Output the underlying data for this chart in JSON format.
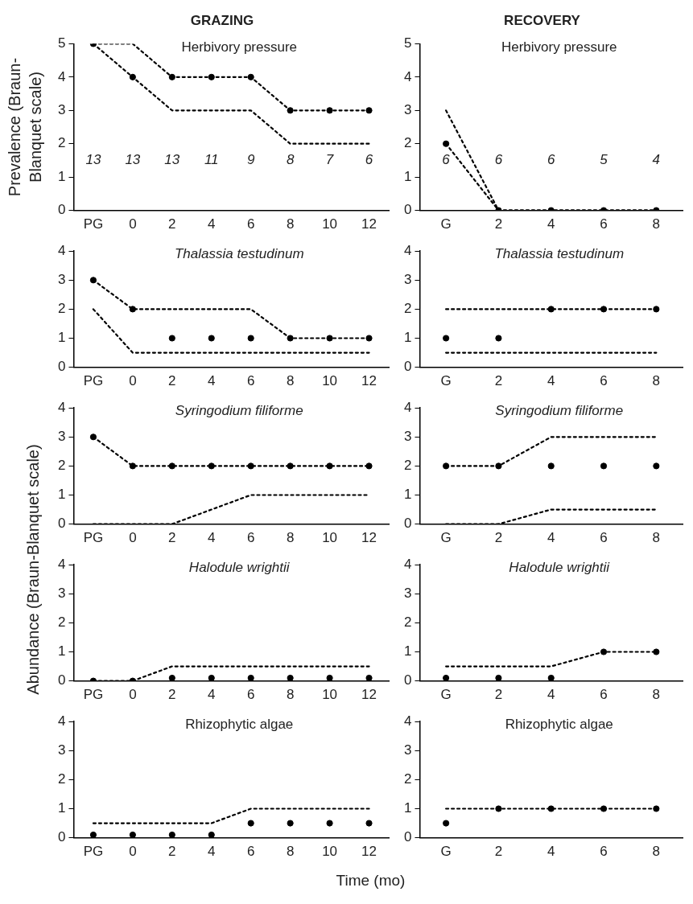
{
  "chart_data": [
    {
      "type": "line",
      "title": "GRAZING",
      "subtitle": "Herbivory pressure",
      "ylabel": "Prevalence (Braun-Blanquet scale)",
      "categories": [
        "PG",
        "0",
        "2",
        "4",
        "6",
        "8",
        "10",
        "12"
      ],
      "ylim": [
        0,
        5
      ],
      "yticks": [
        0,
        1,
        2,
        3,
        4,
        5
      ],
      "grid": false,
      "series": [
        {
          "line_style": "dashed",
          "color": "#000000",
          "values": [
            5,
            5,
            4,
            4,
            4,
            3,
            3,
            3
          ]
        },
        {
          "line_style": "dashed",
          "color": "#000000",
          "values": [
            5,
            4,
            3,
            3,
            3,
            2,
            2,
            2
          ]
        },
        {
          "type": "scatter",
          "marker": "circle",
          "color": "#000000",
          "values": [
            5,
            4,
            4,
            4,
            4,
            3,
            3,
            3
          ]
        }
      ],
      "annotations": [
        "13",
        "13",
        "13",
        "11",
        "9",
        "8",
        "7",
        "6"
      ]
    },
    {
      "type": "line",
      "title": "RECOVERY",
      "subtitle": "Herbivory pressure",
      "categories": [
        "G",
        "2",
        "4",
        "6",
        "8"
      ],
      "ylim": [
        0,
        5
      ],
      "yticks": [
        0,
        1,
        2,
        3,
        4,
        5
      ],
      "grid": false,
      "series": [
        {
          "line_style": "dashed",
          "color": "#000000",
          "values": [
            3,
            0,
            0,
            0,
            0
          ]
        },
        {
          "line_style": "dashed",
          "color": "#000000",
          "values": [
            2,
            0,
            0,
            0,
            0
          ]
        },
        {
          "type": "scatter",
          "marker": "circle",
          "color": "#000000",
          "values": [
            2,
            0,
            0,
            0,
            0
          ]
        }
      ],
      "annotations": [
        "6",
        "6",
        "6",
        "5",
        "4"
      ]
    },
    {
      "type": "line",
      "subtitle": "Thalassia testudinum",
      "categories": [
        "PG",
        "0",
        "2",
        "4",
        "6",
        "8",
        "10",
        "12"
      ],
      "ylim": [
        0,
        4
      ],
      "yticks": [
        0,
        1,
        2,
        3,
        4
      ],
      "grid": false,
      "series": [
        {
          "line_style": "dashed",
          "color": "#000000",
          "values": [
            3,
            2,
            2,
            2,
            2,
            1,
            1,
            1
          ]
        },
        {
          "line_style": "dashed",
          "color": "#000000",
          "values": [
            2,
            0.5,
            0.5,
            0.5,
            0.5,
            0.5,
            0.5,
            0.5
          ]
        },
        {
          "type": "scatter",
          "marker": "circle",
          "color": "#000000",
          "values": [
            3,
            2,
            1,
            1,
            1,
            1,
            1,
            1
          ]
        }
      ]
    },
    {
      "type": "line",
      "subtitle": "Thalassia testudinum",
      "categories": [
        "G",
        "2",
        "4",
        "6",
        "8"
      ],
      "ylim": [
        0,
        4
      ],
      "yticks": [
        0,
        1,
        2,
        3,
        4
      ],
      "grid": false,
      "series": [
        {
          "line_style": "dashed",
          "color": "#000000",
          "values": [
            2,
            2,
            2,
            2,
            2
          ]
        },
        {
          "line_style": "dashed",
          "color": "#000000",
          "values": [
            0.5,
            0.5,
            0.5,
            0.5,
            0.5
          ]
        },
        {
          "type": "scatter",
          "marker": "circle",
          "color": "#000000",
          "values": [
            1,
            1,
            2,
            2,
            2
          ]
        }
      ]
    },
    {
      "type": "line",
      "subtitle": "Syringodium filiforme",
      "ylabel": "Abundance (Braun-Blanquet scale)",
      "categories": [
        "PG",
        "0",
        "2",
        "4",
        "6",
        "8",
        "10",
        "12"
      ],
      "ylim": [
        0,
        4
      ],
      "yticks": [
        0,
        1,
        2,
        3,
        4
      ],
      "grid": false,
      "series": [
        {
          "line_style": "dashed",
          "color": "#000000",
          "values": [
            3,
            2,
            2,
            2,
            2,
            2,
            2,
            2
          ]
        },
        {
          "line_style": "dashed",
          "color": "#000000",
          "values": [
            0,
            0,
            0,
            0.5,
            1,
            1,
            1,
            1
          ]
        },
        {
          "type": "scatter",
          "marker": "circle",
          "color": "#000000",
          "values": [
            3,
            2,
            2,
            2,
            2,
            2,
            2,
            2
          ]
        }
      ]
    },
    {
      "type": "line",
      "subtitle": "Syringodium filiforme",
      "categories": [
        "G",
        "2",
        "4",
        "6",
        "8"
      ],
      "ylim": [
        0,
        4
      ],
      "yticks": [
        0,
        1,
        2,
        3,
        4
      ],
      "grid": false,
      "series": [
        {
          "line_style": "dashed",
          "color": "#000000",
          "values": [
            2,
            2,
            3,
            3,
            3
          ]
        },
        {
          "line_style": "dashed",
          "color": "#000000",
          "values": [
            0,
            0,
            0.5,
            0.5,
            0.5
          ]
        },
        {
          "type": "scatter",
          "marker": "circle",
          "color": "#000000",
          "values": [
            2,
            2,
            2,
            2,
            2
          ]
        }
      ]
    },
    {
      "type": "line",
      "subtitle": "Halodule wrightii",
      "categories": [
        "PG",
        "0",
        "2",
        "4",
        "6",
        "8",
        "10",
        "12"
      ],
      "ylim": [
        0,
        4
      ],
      "yticks": [
        0,
        1,
        2,
        3,
        4
      ],
      "grid": false,
      "series": [
        {
          "line_style": "dashed",
          "color": "#000000",
          "values": [
            0,
            0,
            0.5,
            0.5,
            0.5,
            0.5,
            0.5,
            0.5
          ]
        },
        {
          "type": "scatter",
          "marker": "circle",
          "color": "#000000",
          "values": [
            0,
            0,
            0.1,
            0.1,
            0.1,
            0.1,
            0.1,
            0.1
          ]
        }
      ]
    },
    {
      "type": "line",
      "subtitle": "Halodule wrightii",
      "categories": [
        "G",
        "2",
        "4",
        "6",
        "8"
      ],
      "ylim": [
        0,
        4
      ],
      "yticks": [
        0,
        1,
        2,
        3,
        4
      ],
      "grid": false,
      "series": [
        {
          "line_style": "dashed",
          "color": "#000000",
          "values": [
            0.5,
            0.5,
            0.5,
            1,
            1
          ]
        },
        {
          "type": "scatter",
          "marker": "circle",
          "color": "#000000",
          "values": [
            0.1,
            0.1,
            0.1,
            1,
            1
          ]
        }
      ]
    },
    {
      "type": "line",
      "subtitle": "Rhizophytic algae",
      "xlabel": "Time (mo)",
      "categories": [
        "PG",
        "0",
        "2",
        "4",
        "6",
        "8",
        "10",
        "12"
      ],
      "ylim": [
        0,
        4
      ],
      "yticks": [
        0,
        1,
        2,
        3,
        4
      ],
      "grid": false,
      "series": [
        {
          "line_style": "dashed",
          "color": "#000000",
          "values": [
            0.5,
            0.5,
            0.5,
            0.5,
            1,
            1,
            1,
            1
          ]
        },
        {
          "type": "scatter",
          "marker": "circle",
          "color": "#000000",
          "values": [
            0.1,
            0.1,
            0.1,
            0.1,
            0.5,
            0.5,
            0.5,
            0.5
          ]
        }
      ]
    },
    {
      "type": "line",
      "subtitle": "Rhizophytic algae",
      "categories": [
        "G",
        "2",
        "4",
        "6",
        "8"
      ],
      "ylim": [
        0,
        4
      ],
      "yticks": [
        0,
        1,
        2,
        3,
        4
      ],
      "grid": false,
      "series": [
        {
          "line_style": "dashed",
          "color": "#000000",
          "values": [
            1,
            1,
            1,
            1,
            1
          ]
        },
        {
          "type": "scatter",
          "marker": "circle",
          "color": "#000000",
          "values": [
            0.5,
            1,
            1,
            1,
            1
          ]
        }
      ]
    }
  ]
}
